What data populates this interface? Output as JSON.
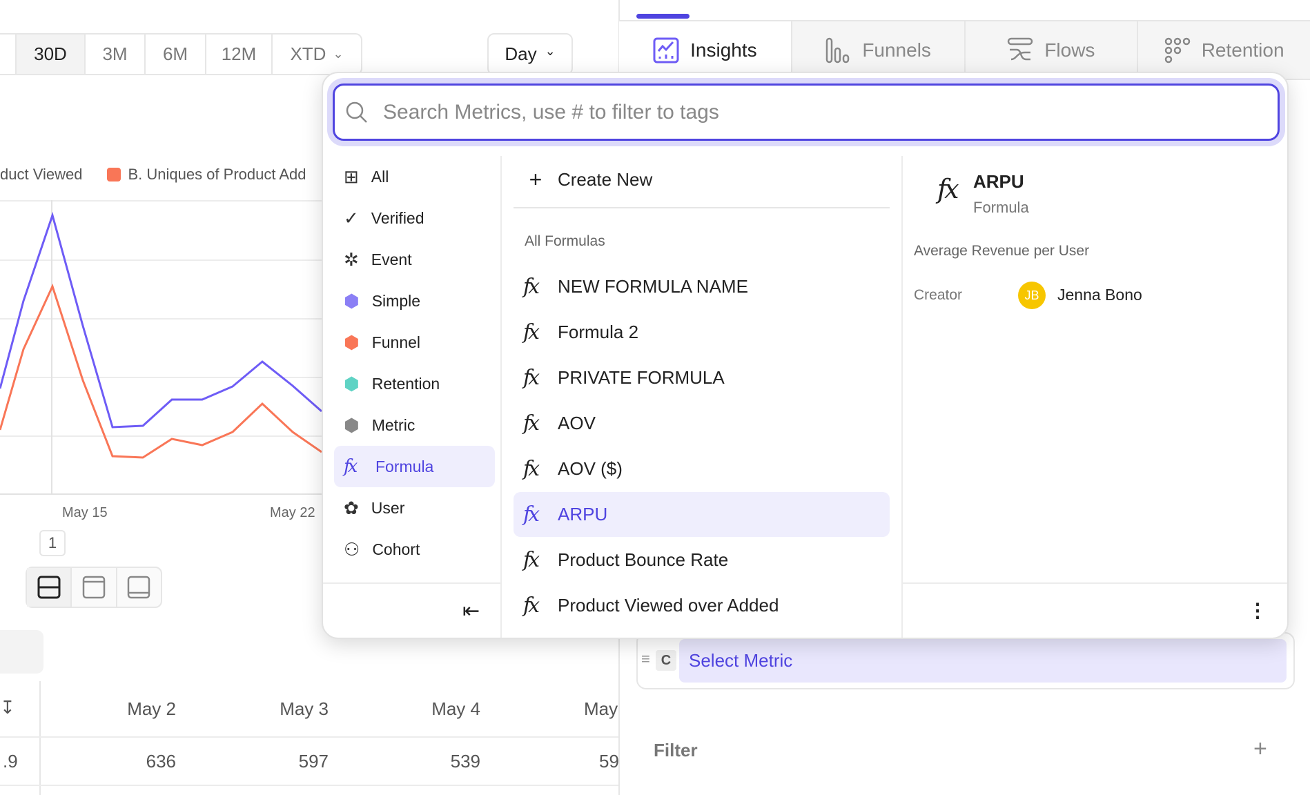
{
  "date_range": {
    "options": [
      "30D",
      "3M",
      "6M",
      "12M",
      "XTD"
    ],
    "selected": "30D"
  },
  "granularity": "Day",
  "legend": {
    "a": "duct Viewed",
    "b": "B. Uniques of Product Add",
    "b_color": "#f97657",
    "a_color": "#6e5cf6"
  },
  "x_ticks": [
    "May 15",
    "May 22"
  ],
  "page_badge": "1",
  "table": {
    "headers": [
      "May 2",
      "May 3",
      "May 4",
      "May"
    ],
    "row": [
      ".9",
      "636",
      "597",
      "539",
      "59"
    ]
  },
  "tabs": [
    {
      "label": "Insights",
      "icon": "insights-icon"
    },
    {
      "label": "Funnels",
      "icon": "funnels-icon"
    },
    {
      "label": "Flows",
      "icon": "flows-icon"
    },
    {
      "label": "Retention",
      "icon": "retention-icon"
    }
  ],
  "dropdown": {
    "search_placeholder": "Search Metrics, use # to filter to tags",
    "categories": [
      "All",
      "Verified",
      "Event",
      "Simple",
      "Funnel",
      "Retention",
      "Metric",
      "Formula",
      "User",
      "Cohort"
    ],
    "selected_category": "Formula",
    "create_new": "Create New",
    "section_title": "All Formulas",
    "formulas": [
      "NEW FORMULA NAME",
      "Formula 2",
      "PRIVATE FORMULA",
      "AOV",
      "AOV ($)",
      "ARPU",
      "Product Bounce Rate",
      "Product Viewed over Added"
    ],
    "selected_formula": "ARPU",
    "detail": {
      "title": "ARPU",
      "type": "Formula",
      "description": "Average Revenue per User",
      "creator_label": "Creator",
      "creator_initials": "JB",
      "creator_name": "Jenna Bono"
    }
  },
  "metric_row": {
    "letter": "C",
    "label": "Select Metric"
  },
  "filter_label": "Filter",
  "fx_glyph": "fx",
  "accent": "#4f44e0"
}
